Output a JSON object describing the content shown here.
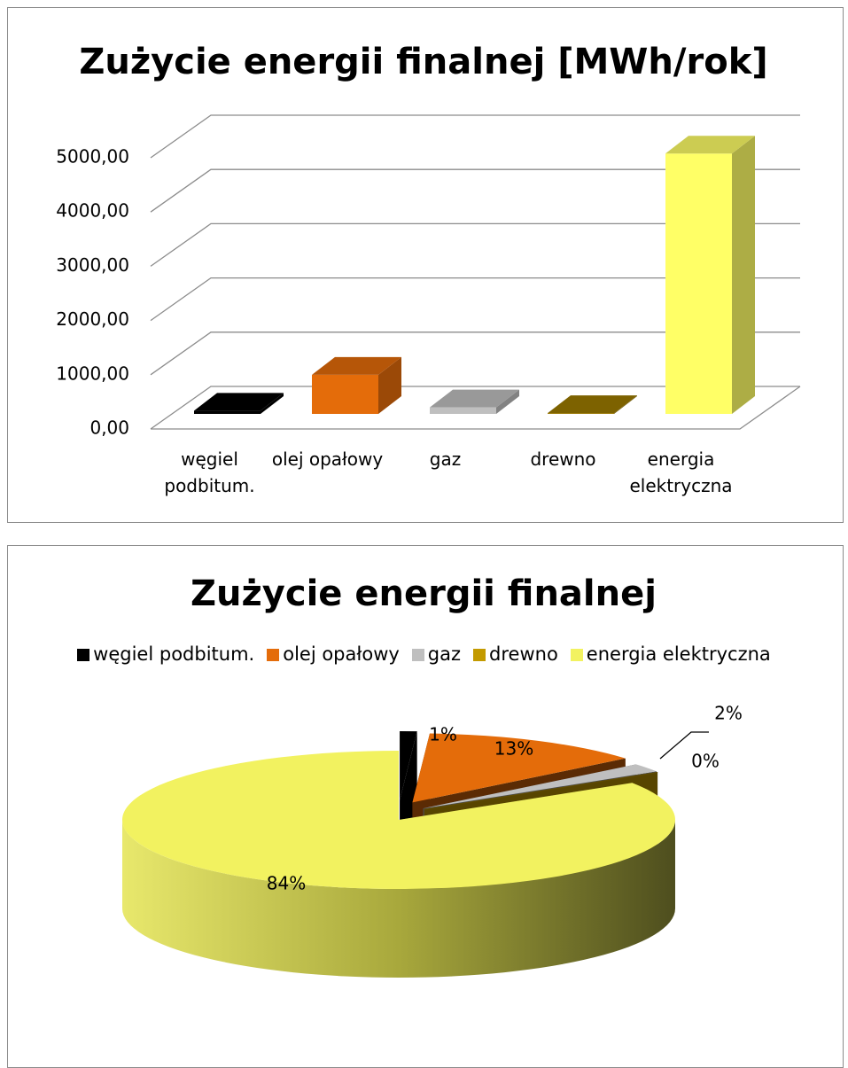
{
  "chart_data": [
    {
      "type": "bar3d",
      "title": "Zużycie energii finalnej [MWh/rok]",
      "categories": [
        "węgiel podbitum.",
        "olej opałowy",
        "gaz",
        "drewno",
        "energia elektryczna"
      ],
      "values": [
        60,
        720,
        120,
        15,
        4800
      ],
      "colors": [
        "#000000",
        "#e46c0a",
        "#bfbfbf",
        "#9c7a00",
        "#ffff66"
      ],
      "ylim": [
        0,
        5000
      ],
      "yticks": [
        {
          "value": 0,
          "label": "0,00"
        },
        {
          "value": 1000,
          "label": "1000,00"
        },
        {
          "value": 2000,
          "label": "2000,00"
        },
        {
          "value": 3000,
          "label": "3000,00"
        },
        {
          "value": 4000,
          "label": "4000,00"
        },
        {
          "value": 5000,
          "label": "5000,00"
        }
      ],
      "grid": true
    },
    {
      "type": "pie3d",
      "title": "Zużycie energii finalnej",
      "categories": [
        "węgiel podbitum.",
        "olej opałowy",
        "gaz",
        "drewno",
        "energia elektryczna"
      ],
      "values": [
        1,
        13,
        2,
        0,
        84
      ],
      "value_labels": [
        "1%",
        "13%",
        "2%",
        "0%",
        "84%"
      ],
      "colors": [
        "#000000",
        "#e46c0a",
        "#bfbfbf",
        "#c39a00",
        "#f2f260"
      ],
      "legend": "top"
    }
  ]
}
